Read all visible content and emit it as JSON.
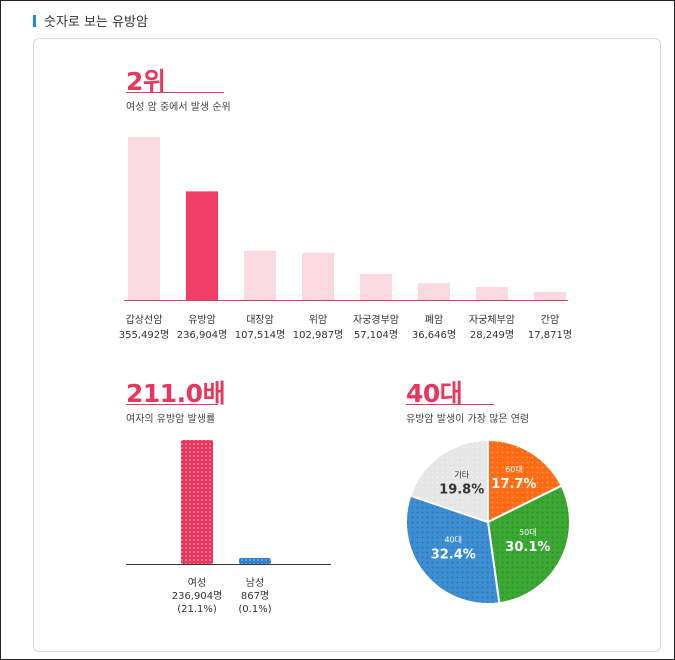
{
  "section": {
    "title": "숫자로 보는 유방암"
  },
  "rank": {
    "value": "2위",
    "caption": "여성 암 중에서 발생 순위"
  },
  "ratio": {
    "value": "211.0배",
    "caption": "여자의 유방암 발생률"
  },
  "age": {
    "value": "40대",
    "caption": "유방암 발생이 가장 많은 연령"
  },
  "colors": {
    "accent": "#e8375e",
    "bar_light": "#fbd9e0",
    "bar_highlight": "#f03e66"
  },
  "chart_data": [
    {
      "type": "bar",
      "categories": [
        "갑상선암",
        "유방암",
        "대장암",
        "위암",
        "자궁경부암",
        "폐암",
        "자궁체부암",
        "간암"
      ],
      "value_labels": [
        "355,492명",
        "236,904명",
        "107,514명",
        "102,987명",
        "57,104명",
        "36,646명",
        "28,249명",
        "17,871명"
      ],
      "values": [
        355492,
        236904,
        107514,
        102987,
        57104,
        36646,
        28249,
        17871
      ],
      "highlight": "유방암",
      "ylim": [
        0,
        355492
      ]
    },
    {
      "type": "bar",
      "categories": [
        "여성",
        "남성"
      ],
      "values": [
        236904,
        867
      ],
      "value_labels": [
        "236,904명",
        "867명"
      ],
      "percent_labels": [
        "(21.1%)",
        "(0.1%)"
      ],
      "colors": [
        "#e8375e",
        "#2f7fcb"
      ],
      "ylim": [
        0,
        236904
      ]
    },
    {
      "type": "pie",
      "labels": [
        "60대",
        "50대",
        "40대",
        "기타"
      ],
      "values": [
        17.7,
        30.1,
        32.4,
        19.8
      ],
      "value_labels": [
        "17.7%",
        "30.1%",
        "32.4%",
        "19.8%"
      ],
      "colors": [
        "#ff6a13",
        "#3aa832",
        "#3d8fd4",
        "#e6e6e6"
      ]
    }
  ]
}
